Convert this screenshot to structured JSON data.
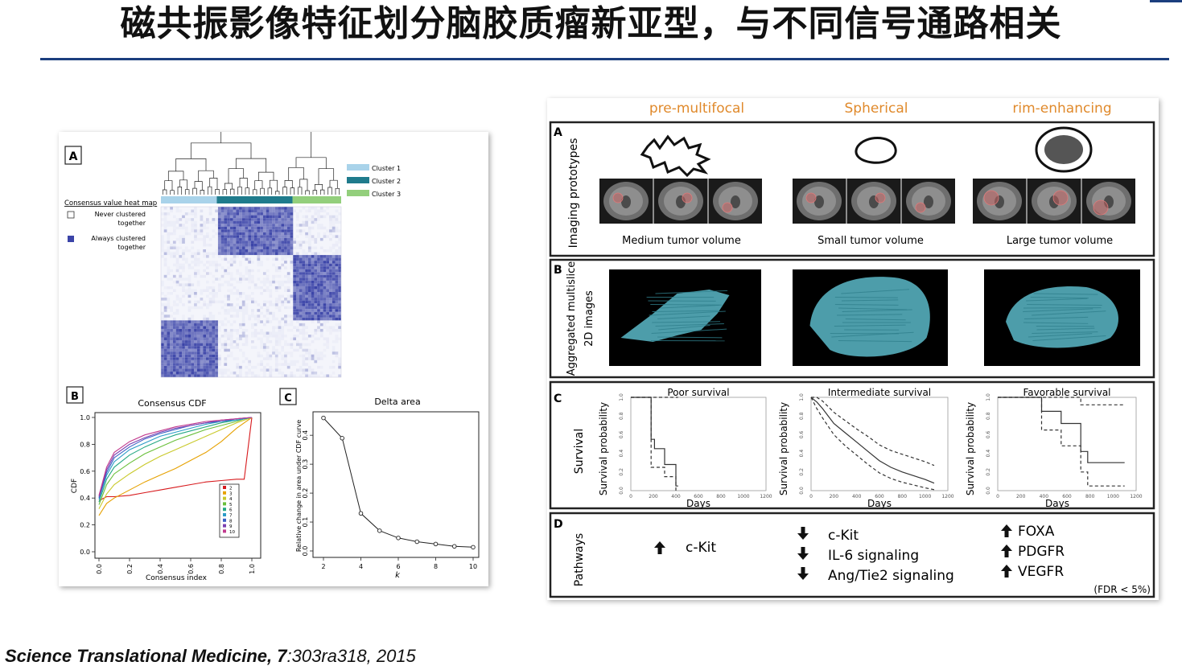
{
  "slide": {
    "title": "磁共振影像特征划分脑胶质瘤新亚型，与不同信号通路相关",
    "citation_journal": "Science Translational Medicine, ",
    "citation_volume": "7",
    "citation_rest": ":303ra318, 2015"
  },
  "left_figure": {
    "panel_a": {
      "letter": "A",
      "heatmap_title": "Consensus value heat map",
      "legend_never_1": "Never clustered",
      "legend_never_2": "together",
      "legend_always_1": "Always clustered",
      "legend_always_2": "together",
      "clusters": [
        {
          "label": "Cluster 1",
          "color": "#a9d3ea"
        },
        {
          "label": "Cluster 2",
          "color": "#1f7b8c"
        },
        {
          "label": "Cluster 3",
          "color": "#93cf7c"
        }
      ],
      "heat_color": "#3b44a8"
    },
    "panel_b": {
      "letter": "B",
      "title": "Consensus CDF",
      "xlabel": "Consensus index",
      "ylabel": "CDF",
      "yticks": [
        "0.0",
        "0.2",
        "0.4",
        "0.6",
        "0.8",
        "1.0"
      ],
      "xticks": [
        "0.0",
        "0.2",
        "0.4",
        "0.6",
        "0.8",
        "1.0"
      ],
      "legend": [
        "2",
        "3",
        "4",
        "5",
        "6",
        "7",
        "8",
        "9",
        "10"
      ]
    },
    "panel_c": {
      "letter": "C",
      "title": "Delta area",
      "xlabel": "k",
      "ylabel": "Relative change in area under CDF curve",
      "yticks": [
        "0.0",
        "0.1",
        "0.2",
        "0.3",
        "0.4"
      ],
      "xticks": [
        "2",
        "4",
        "6",
        "8",
        "10"
      ]
    }
  },
  "chart_data": [
    {
      "type": "line",
      "title": "Consensus CDF",
      "xlabel": "Consensus index",
      "ylabel": "CDF",
      "xlim": [
        0,
        1
      ],
      "ylim": [
        0,
        1
      ],
      "x": [
        0,
        0.05,
        0.1,
        0.2,
        0.3,
        0.4,
        0.5,
        0.6,
        0.7,
        0.8,
        0.9,
        0.95,
        1.0
      ],
      "series": [
        {
          "name": "2",
          "color": "#d7191c",
          "values": [
            0.38,
            0.41,
            0.41,
            0.42,
            0.44,
            0.46,
            0.48,
            0.5,
            0.52,
            0.53,
            0.54,
            0.54,
            1.0
          ]
        },
        {
          "name": "3",
          "color": "#e6a100",
          "values": [
            0.27,
            0.36,
            0.4,
            0.46,
            0.52,
            0.57,
            0.62,
            0.68,
            0.74,
            0.82,
            0.92,
            0.96,
            1.0
          ]
        },
        {
          "name": "4",
          "color": "#c9c92a",
          "values": [
            0.32,
            0.43,
            0.5,
            0.58,
            0.65,
            0.71,
            0.76,
            0.81,
            0.86,
            0.91,
            0.96,
            0.98,
            1.0
          ]
        },
        {
          "name": "5",
          "color": "#6abf3a",
          "values": [
            0.35,
            0.5,
            0.58,
            0.66,
            0.73,
            0.78,
            0.83,
            0.87,
            0.91,
            0.94,
            0.97,
            0.99,
            1.0
          ]
        },
        {
          "name": "6",
          "color": "#25a884",
          "values": [
            0.37,
            0.54,
            0.63,
            0.72,
            0.78,
            0.83,
            0.87,
            0.9,
            0.93,
            0.96,
            0.98,
            0.99,
            1.0
          ]
        },
        {
          "name": "7",
          "color": "#2a9bc7",
          "values": [
            0.39,
            0.57,
            0.67,
            0.76,
            0.81,
            0.86,
            0.89,
            0.92,
            0.95,
            0.97,
            0.98,
            0.99,
            1.0
          ]
        },
        {
          "name": "8",
          "color": "#3b5fc4",
          "values": [
            0.4,
            0.59,
            0.7,
            0.78,
            0.84,
            0.88,
            0.91,
            0.94,
            0.96,
            0.97,
            0.99,
            0.995,
            1.0
          ]
        },
        {
          "name": "9",
          "color": "#7a3fb0",
          "values": [
            0.41,
            0.61,
            0.72,
            0.8,
            0.85,
            0.89,
            0.92,
            0.94,
            0.96,
            0.98,
            0.99,
            0.995,
            1.0
          ]
        },
        {
          "name": "10",
          "color": "#c23a8e",
          "values": [
            0.42,
            0.63,
            0.74,
            0.82,
            0.87,
            0.9,
            0.93,
            0.95,
            0.97,
            0.98,
            0.99,
            0.995,
            1.0
          ]
        }
      ]
    },
    {
      "type": "line",
      "title": "Delta area",
      "xlabel": "k",
      "ylabel": "Relative change in area under CDF curve",
      "xlim": [
        2,
        10
      ],
      "ylim": [
        0,
        0.47
      ],
      "x": [
        2,
        3,
        4,
        5,
        6,
        7,
        8,
        9,
        10
      ],
      "series": [
        {
          "values": [
            0.46,
            0.39,
            0.13,
            0.07,
            0.045,
            0.032,
            0.024,
            0.016,
            0.013
          ]
        }
      ]
    },
    {
      "type": "line",
      "title": "Poor survival",
      "xlabel": "Days",
      "ylabel": "Survival probability",
      "xlim": [
        0,
        1200
      ],
      "ylim": [
        0,
        1
      ],
      "series": [
        {
          "name": "estimate",
          "x": [
            0,
            180,
            180,
            210,
            210,
            300,
            300,
            400,
            400,
            420
          ],
          "values": [
            1,
            1,
            0.55,
            0.55,
            0.45,
            0.45,
            0.28,
            0.28,
            0.05,
            0.05
          ]
        },
        {
          "name": "upper",
          "x": [
            0,
            180,
            180,
            300,
            300,
            420
          ],
          "values": [
            1,
            1,
            1,
            1,
            1,
            1
          ]
        },
        {
          "name": "lower",
          "x": [
            0,
            180,
            180,
            300,
            300,
            400,
            400,
            420
          ],
          "values": [
            1,
            1,
            0.25,
            0.25,
            0.15,
            0.15,
            0.0,
            0.0
          ]
        }
      ]
    },
    {
      "type": "line",
      "title": "Intermediate survival",
      "xlabel": "Days",
      "ylabel": "Survival probability",
      "xlim": [
        0,
        1200
      ],
      "ylim": [
        0,
        1
      ],
      "series": [
        {
          "name": "estimate",
          "x": [
            0,
            50,
            100,
            150,
            200,
            300,
            400,
            500,
            600,
            700,
            800,
            900,
            1000,
            1080
          ],
          "values": [
            1,
            0.95,
            0.88,
            0.8,
            0.72,
            0.62,
            0.52,
            0.42,
            0.32,
            0.25,
            0.2,
            0.16,
            0.12,
            0.08
          ]
        },
        {
          "name": "upper",
          "x": [
            0,
            50,
            100,
            150,
            200,
            300,
            400,
            500,
            600,
            700,
            800,
            900,
            1000,
            1080
          ],
          "values": [
            1,
            1,
            0.96,
            0.9,
            0.84,
            0.75,
            0.66,
            0.58,
            0.49,
            0.43,
            0.39,
            0.35,
            0.31,
            0.27
          ]
        },
        {
          "name": "lower",
          "x": [
            0,
            50,
            100,
            150,
            200,
            300,
            400,
            500,
            600,
            700,
            800,
            900,
            1000,
            1080
          ],
          "values": [
            1,
            0.88,
            0.78,
            0.69,
            0.6,
            0.48,
            0.38,
            0.28,
            0.19,
            0.13,
            0.09,
            0.06,
            0.03,
            0.01
          ]
        }
      ]
    },
    {
      "type": "line",
      "title": "Favorable survival",
      "xlabel": "Days",
      "ylabel": "Survival probability",
      "xlim": [
        0,
        1200
      ],
      "ylim": [
        0,
        1
      ],
      "series": [
        {
          "name": "estimate",
          "x": [
            0,
            380,
            380,
            550,
            550,
            720,
            720,
            780,
            780,
            1100
          ],
          "values": [
            1,
            1,
            0.85,
            0.85,
            0.72,
            0.72,
            0.42,
            0.42,
            0.3,
            0.3
          ]
        },
        {
          "name": "upper",
          "x": [
            0,
            550,
            550,
            720,
            720,
            1100
          ],
          "values": [
            1,
            1,
            1,
            1,
            0.92,
            0.92
          ]
        },
        {
          "name": "lower",
          "x": [
            0,
            380,
            380,
            550,
            550,
            720,
            720,
            780,
            780,
            1100
          ],
          "values": [
            1,
            1,
            0.65,
            0.65,
            0.48,
            0.48,
            0.2,
            0.2,
            0.05,
            0.05
          ]
        }
      ]
    }
  ],
  "right_figure": {
    "columns": [
      "pre-multifocal",
      "Spherical",
      "rim-enhancing"
    ],
    "column_color": "#e08a2c",
    "panel_a": {
      "letter": "A",
      "label": "Imaging prototypes",
      "captions": [
        "Medium tumor volume",
        "Small tumor volume",
        "Large tumor volume"
      ]
    },
    "panel_b": {
      "letter": "B",
      "label_1": "Aggregated multislice",
      "label_2": "2D images"
    },
    "panel_c": {
      "letter": "C",
      "label": "Survival",
      "ylabel": "Survival probability",
      "xlabel": "Days",
      "yticks": [
        "0.0",
        "0.2",
        "0.4",
        "0.6",
        "0.8",
        "1.0"
      ],
      "xticks": [
        "0",
        "200",
        "400",
        "600",
        "800",
        "1000",
        "1200"
      ],
      "titles": [
        "Poor survival",
        "Intermediate survival",
        "Favorable survival"
      ]
    },
    "panel_d": {
      "letter": "D",
      "label": "Pathways",
      "col1": [
        {
          "dir": "up",
          "text": "c-Kit"
        }
      ],
      "col2": [
        {
          "dir": "down",
          "text": "c-Kit"
        },
        {
          "dir": "down",
          "text": "IL-6 signaling"
        },
        {
          "dir": "down",
          "text": "Ang/Tie2 signaling"
        }
      ],
      "col3": [
        {
          "dir": "up",
          "text": "FOXA"
        },
        {
          "dir": "up",
          "text": "PDGFR"
        },
        {
          "dir": "up",
          "text": "VEGFR"
        }
      ],
      "fdr": "(FDR < 5%)"
    },
    "tumor_color": "#5ab8c8"
  }
}
